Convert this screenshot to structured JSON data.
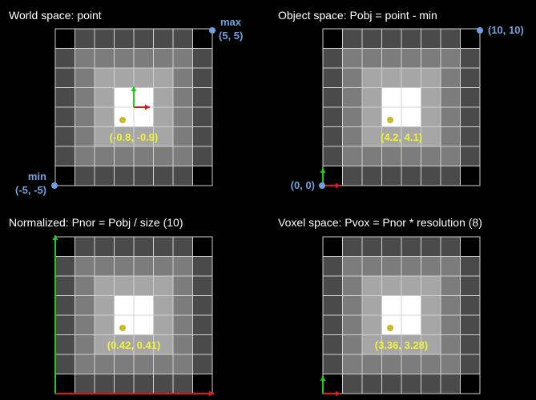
{
  "colors": {
    "background": "#000000",
    "grid_line": "#d0d0d0",
    "ring_levels": [
      "#000000",
      "#4a4a4a",
      "#7c7c7c",
      "#a6a6a6",
      "#ffffff"
    ],
    "point": "#c8b92a",
    "coord_label": "#f2f23a",
    "corner_label": "#6fa1dd",
    "x_axis": "#e01818",
    "y_axis": "#20c820"
  },
  "grid": {
    "cells": 8
  },
  "panels": [
    {
      "title": "World space: point",
      "point_label": "(-0.8, -0.9)",
      "max_label": "max",
      "max_value": "(5, 5)",
      "min_label": "min",
      "min_value": "(-5, -5)",
      "axes": "center"
    },
    {
      "title": "Object space: Pobj = point - min",
      "point_label": "(4.2, 4.1)",
      "max_value": "(10, 10)",
      "min_value": "(0, 0)",
      "axes": "corner-small"
    },
    {
      "title": "Normalized: Pnor = Pobj / size (10)",
      "point_label": "(0.42, 0.41)",
      "axes": "full"
    },
    {
      "title": "Voxel space: Pvox = Pnor * resolution (8)",
      "point_label": "(3.36, 3.28)",
      "axes": "corner-small"
    }
  ]
}
